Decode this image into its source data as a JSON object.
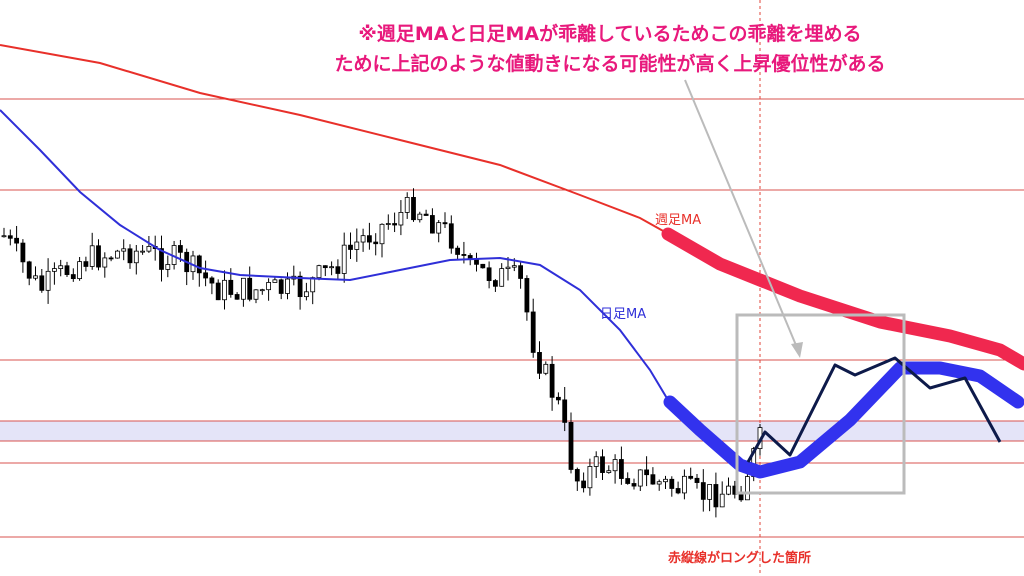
{
  "annotation": {
    "lines": [
      "※週足MAと日足MAが乖離しているためこの乖離を埋める",
      "ために上記のような値動きになる可能性が高く上昇優位性がある"
    ]
  },
  "labels": {
    "weekly_ma": "週足MA",
    "daily_ma": "日足MA",
    "entry_line": "赤縦線がロングした箇所"
  }
}
